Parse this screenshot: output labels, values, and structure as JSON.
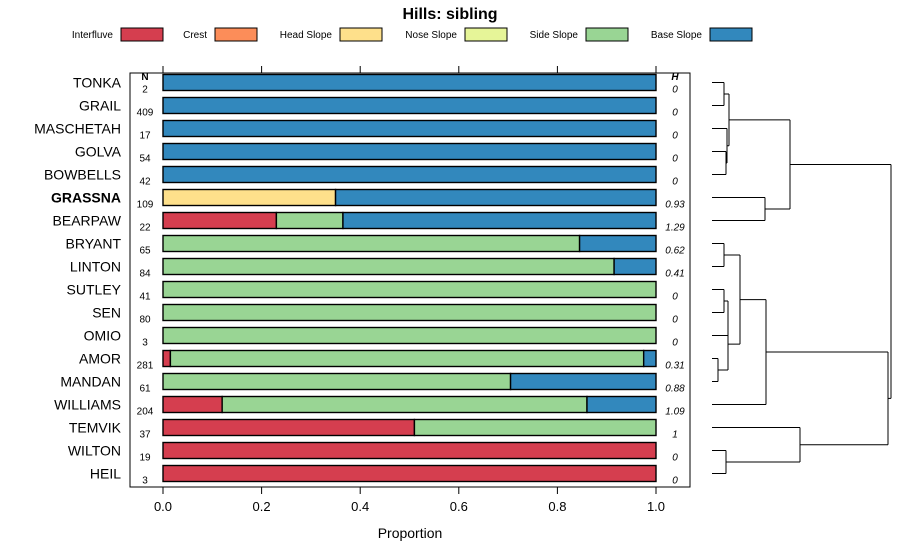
{
  "chart_data": {
    "type": "bar",
    "orientation": "horizontal",
    "stacked": true,
    "title": "Hills: sibling",
    "xlabel": "Proportion",
    "xlim": [
      0,
      1
    ],
    "xticks": [
      "0.0",
      "0.2",
      "0.4",
      "0.6",
      "0.8",
      "1.0"
    ],
    "n_header": "N",
    "h_header": "H",
    "highlight": "GRASSNA",
    "legend": [
      {
        "name": "Interfluve",
        "color": "#d53e4f"
      },
      {
        "name": "Crest",
        "color": "#fc8d59"
      },
      {
        "name": "Head Slope",
        "color": "#fee08b"
      },
      {
        "name": "Nose Slope",
        "color": "#e6f598"
      },
      {
        "name": "Side Slope",
        "color": "#99d594"
      },
      {
        "name": "Base Slope",
        "color": "#3288bd"
      }
    ],
    "categories": [
      "TONKA",
      "GRAIL",
      "MASCHETAH",
      "GOLVA",
      "BOWBELLS",
      "GRASSNA",
      "BEARPAW",
      "BRYANT",
      "LINTON",
      "SUTLEY",
      "SEN",
      "OMIO",
      "AMOR",
      "MANDAN",
      "WILLIAMS",
      "TEMVIK",
      "WILTON",
      "HEIL"
    ],
    "n": [
      "2",
      "409",
      "17",
      "54",
      "42",
      "109",
      "22",
      "65",
      "84",
      "41",
      "80",
      "3",
      "281",
      "61",
      "204",
      "37",
      "19",
      "3"
    ],
    "h": [
      "0",
      "0",
      "0",
      "0",
      "0",
      "0.93",
      "1.29",
      "0.62",
      "0.41",
      "0",
      "0",
      "0",
      "0.31",
      "0.88",
      "1.09",
      "1",
      "0",
      "0"
    ],
    "series": [
      {
        "name": "Interfluve",
        "values": [
          0,
          0,
          0,
          0,
          0,
          0,
          0.23,
          0,
          0,
          0,
          0,
          0,
          0.015,
          0,
          0.12,
          0.51,
          1,
          1
        ]
      },
      {
        "name": "Crest",
        "values": [
          0,
          0,
          0,
          0,
          0,
          0,
          0,
          0,
          0,
          0,
          0,
          0,
          0,
          0,
          0,
          0,
          0,
          0
        ]
      },
      {
        "name": "Head Slope",
        "values": [
          0,
          0,
          0,
          0,
          0,
          0.35,
          0,
          0,
          0,
          0,
          0,
          0,
          0,
          0,
          0,
          0,
          0,
          0
        ]
      },
      {
        "name": "Nose Slope",
        "values": [
          0,
          0,
          0,
          0,
          0,
          0,
          0,
          0,
          0,
          0,
          0,
          0,
          0,
          0,
          0,
          0,
          0,
          0
        ]
      },
      {
        "name": "Side Slope",
        "values": [
          0,
          0,
          0,
          0,
          0,
          0,
          0.135,
          0.845,
          0.915,
          1,
          1,
          1,
          0.96,
          0.705,
          0.74,
          0.49,
          0,
          0
        ]
      },
      {
        "name": "Base Slope",
        "values": [
          1,
          1,
          1,
          1,
          1,
          0.65,
          0.635,
          0.155,
          0.085,
          0,
          0,
          0,
          0.025,
          0.295,
          0.14,
          0,
          0,
          0
        ]
      }
    ]
  }
}
